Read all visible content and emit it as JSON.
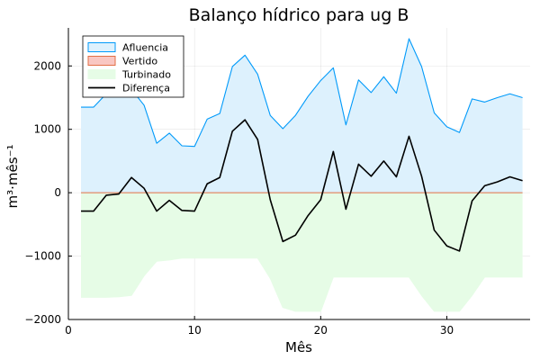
{
  "chart_data": {
    "type": "area",
    "title": "Balanço hídrico para ug B",
    "xlabel": "Mês",
    "ylabel": "m³⋅mês⁻¹",
    "xlim": [
      0,
      36.6
    ],
    "ylim": [
      -2000,
      2600
    ],
    "x_ticks": [
      0,
      10,
      20,
      30
    ],
    "y_ticks": [
      -2000,
      -1000,
      0,
      1000,
      2000
    ],
    "x_tick_labels": [
      "0",
      "10",
      "20",
      "30"
    ],
    "y_tick_labels": [
      "−2000",
      "−1000",
      "0",
      "1000",
      "2000"
    ],
    "grid": true,
    "legend_position": "top-left",
    "x": [
      1,
      2,
      3,
      4,
      5,
      6,
      7,
      8,
      9,
      10,
      11,
      12,
      13,
      14,
      15,
      16,
      17,
      18,
      19,
      20,
      21,
      22,
      23,
      24,
      25,
      26,
      27,
      28,
      29,
      30,
      31,
      32,
      33,
      34,
      35,
      36
    ],
    "series": [
      {
        "name": "Afluencia",
        "kind": "area",
        "line_color": "#009AFA",
        "fill_color": "#DDF1FD",
        "values": [
          1350,
          1350,
          1560,
          1600,
          1630,
          1380,
          780,
          940,
          740,
          730,
          1160,
          1250,
          1990,
          2170,
          1870,
          1220,
          1010,
          1220,
          1520,
          1770,
          1970,
          1070,
          1780,
          1580,
          1830,
          1570,
          2430,
          1990,
          1260,
          1040,
          950,
          1480,
          1430,
          1500,
          1560,
          1500
        ]
      },
      {
        "name": "Vertido",
        "kind": "area",
        "line_color": "#E26F46",
        "fill_color": "#F9C7C2",
        "values": [
          0,
          0,
          0,
          0,
          0,
          0,
          0,
          0,
          0,
          0,
          0,
          0,
          0,
          0,
          0,
          0,
          0,
          0,
          0,
          0,
          0,
          0,
          0,
          0,
          0,
          0,
          0,
          0,
          0,
          0,
          0,
          0,
          0,
          0,
          0,
          0
        ]
      },
      {
        "name": "Turbinado",
        "kind": "area",
        "line_color": "#E6FCE6",
        "fill_color": "#E6FCE6",
        "values": [
          -1650,
          -1650,
          -1650,
          -1640,
          -1620,
          -1310,
          -1080,
          -1060,
          -1030,
          -1030,
          -1030,
          -1030,
          -1030,
          -1030,
          -1030,
          -1350,
          -1810,
          -1870,
          -1870,
          -1870,
          -1330,
          -1330,
          -1330,
          -1330,
          -1330,
          -1330,
          -1330,
          -1620,
          -1870,
          -1870,
          -1870,
          -1620,
          -1330,
          -1330,
          -1330,
          -1330
        ]
      },
      {
        "name": "Diferença",
        "kind": "line",
        "line_color": "#000000",
        "values": [
          -290,
          -290,
          -40,
          -20,
          240,
          70,
          -290,
          -120,
          -280,
          -290,
          140,
          240,
          970,
          1150,
          840,
          -110,
          -770,
          -670,
          -360,
          -110,
          650,
          -260,
          450,
          260,
          500,
          250,
          890,
          260,
          -590,
          -840,
          -920,
          -130,
          110,
          170,
          250,
          190
        ]
      }
    ]
  }
}
